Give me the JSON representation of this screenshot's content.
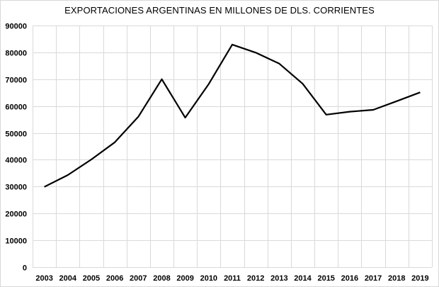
{
  "chart_data": {
    "type": "line",
    "title": "EXPORTACIONES ARGENTINAS  EN MILLONES DE DLS. CORRIENTES",
    "xlabel": "",
    "ylabel": "",
    "categories": [
      "2003",
      "2004",
      "2005",
      "2006",
      "2007",
      "2008",
      "2009",
      "2010",
      "2011",
      "2012",
      "2013",
      "2014",
      "2015",
      "2016",
      "2017",
      "2018",
      "2019"
    ],
    "series": [
      {
        "name": "Exportaciones",
        "values": [
          29900,
          34300,
          40100,
          46500,
          56000,
          70000,
          55700,
          68200,
          82900,
          79900,
          75800,
          68300,
          56800,
          57900,
          58600,
          61800,
          65100
        ],
        "color": "#000000"
      }
    ],
    "ylim": [
      0,
      90000
    ],
    "yticks": [
      "0",
      "10000",
      "20000",
      "30000",
      "40000",
      "50000",
      "60000",
      "70000",
      "80000",
      "90000"
    ],
    "grid": true,
    "legend": "none",
    "gridColor": "#d9d9d9"
  }
}
